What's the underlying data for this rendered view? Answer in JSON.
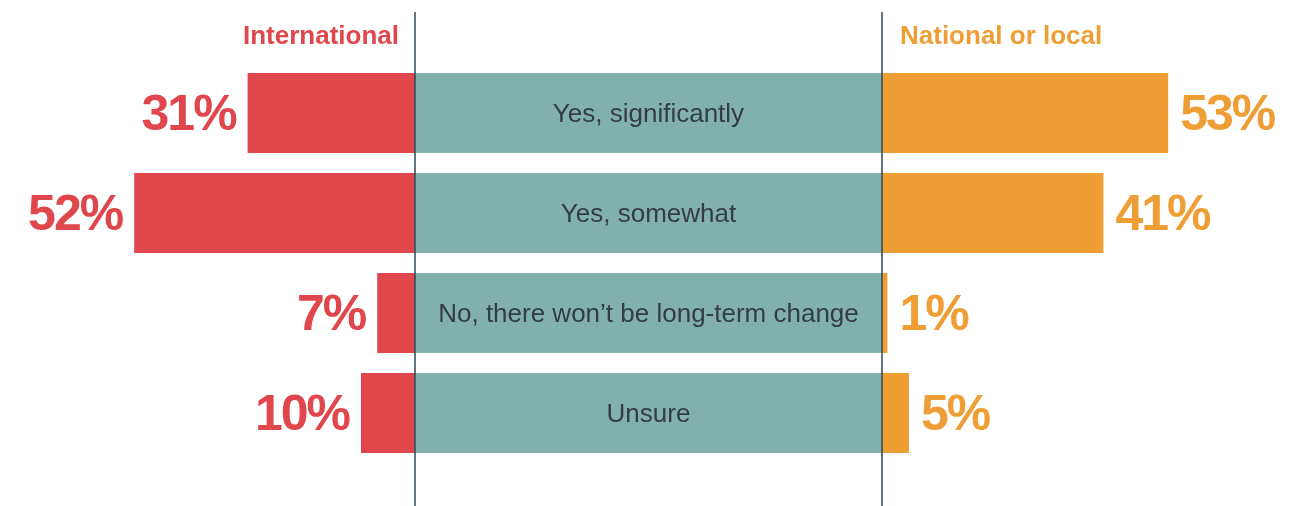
{
  "chart_data": [
    {
      "type": "bar",
      "orientation": "horizontal",
      "categories": [
        "Yes, significantly",
        "Yes, somewhat",
        "No, there won’t be long-term change",
        "Unsure"
      ],
      "series": [
        {
          "name": "International",
          "color": "#e0474c",
          "values": [
            31,
            52,
            7,
            10
          ],
          "value_labels": [
            "31%",
            "52%",
            "7%",
            "10%"
          ]
        }
      ]
    },
    {
      "type": "bar",
      "orientation": "horizontal",
      "tick_labels": false,
      "categories": [
        null,
        null,
        null,
        null
      ],
      "series": [
        {
          "name": "National or local",
          "color": "#ef9e35",
          "values": [
            53,
            41,
            1,
            5
          ],
          "value_labels": [
            "53%",
            "41%",
            "1%",
            "5%"
          ]
        }
      ]
    }
  ]
}
